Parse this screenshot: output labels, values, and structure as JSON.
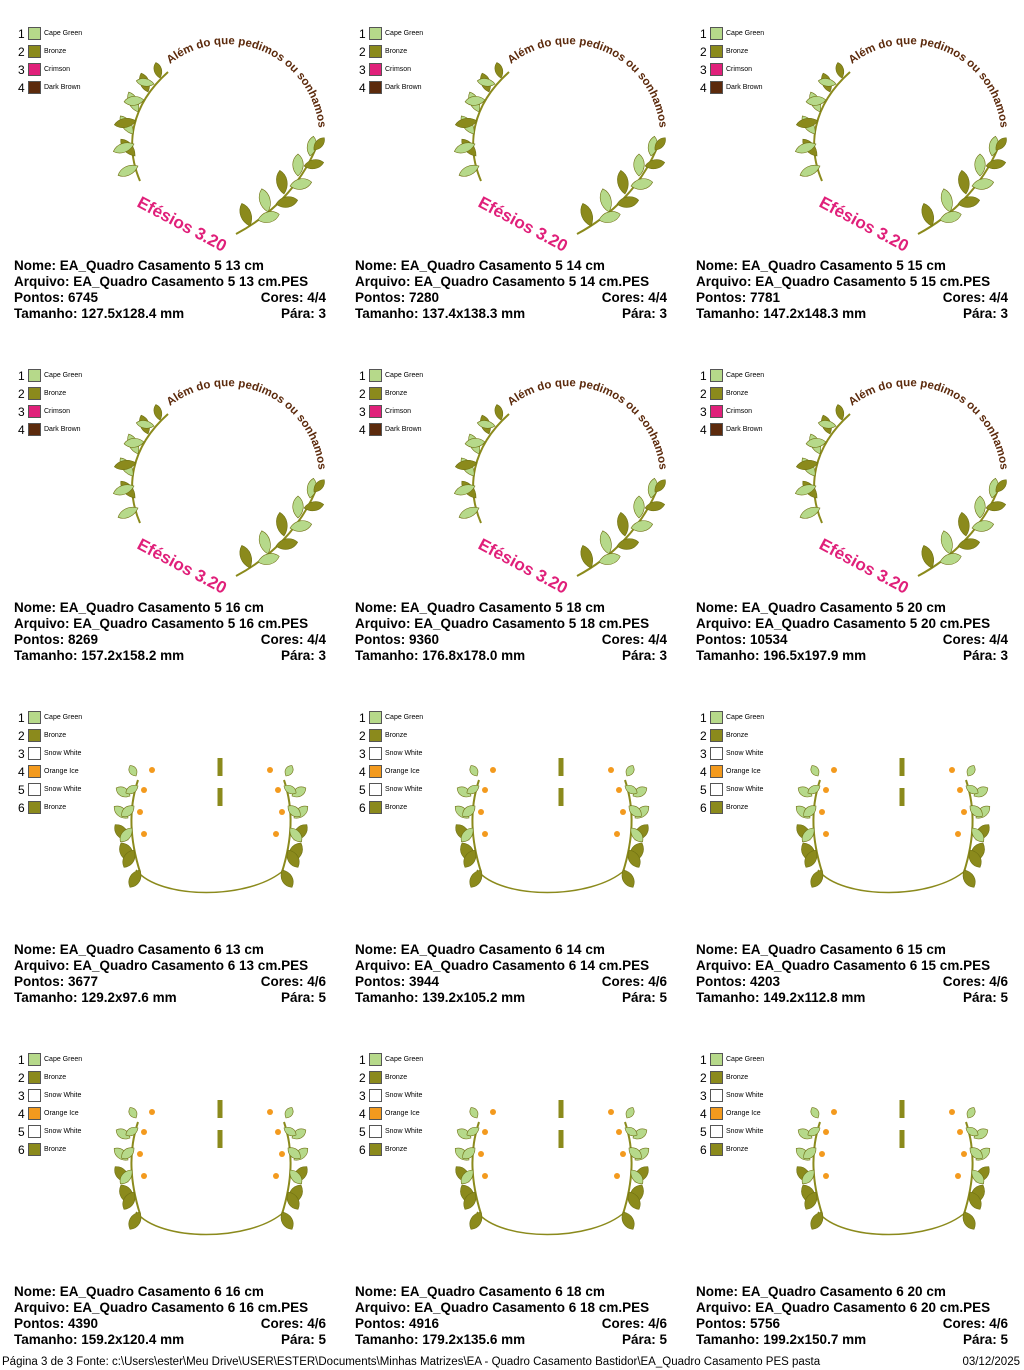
{
  "palettes": {
    "a": [
      {
        "num": "1",
        "name": "Cape Green",
        "color": "#b6d98a"
      },
      {
        "num": "2",
        "name": "Bronze",
        "color": "#8b8a1c"
      },
      {
        "num": "3",
        "name": "Crimson",
        "color": "#e0207a"
      },
      {
        "num": "4",
        "name": "Dark Brown",
        "color": "#5c2a0c"
      }
    ],
    "b": [
      {
        "num": "1",
        "name": "Cape Green",
        "color": "#b6d98a"
      },
      {
        "num": "2",
        "name": "Bronze",
        "color": "#8b8a1c"
      },
      {
        "num": "3",
        "name": "Snow White",
        "color": "#ffffff"
      },
      {
        "num": "4",
        "name": "Orange Ice",
        "color": "#f39a1e"
      },
      {
        "num": "5",
        "name": "Snow White",
        "color": "#ffffff"
      },
      {
        "num": "6",
        "name": "Bronze",
        "color": "#8b8a1c"
      }
    ]
  },
  "artwork": {
    "verse": "Além do que pedimos ou sonhamos",
    "reference": "Efésios 3.20"
  },
  "labels": {
    "name": "Nome:",
    "file": "Arquivo:",
    "stitches": "Pontos:",
    "colors": "Cores:",
    "size": "Tamanho:",
    "stops": "Pára:"
  },
  "designs": [
    {
      "palette": "a",
      "name": "EA_Quadro Casamento 5 13 cm",
      "file": "EA_Quadro Casamento 5 13 cm.PES",
      "stitches": "6745",
      "colors": "4/4",
      "size": "127.5x128.4 mm",
      "stops": "3"
    },
    {
      "palette": "a",
      "name": "EA_Quadro Casamento 5 14 cm",
      "file": "EA_Quadro Casamento 5 14 cm.PES",
      "stitches": "7280",
      "colors": "4/4",
      "size": "137.4x138.3 mm",
      "stops": "3"
    },
    {
      "palette": "a",
      "name": "EA_Quadro Casamento 5 15 cm",
      "file": "EA_Quadro Casamento 5 15 cm.PES",
      "stitches": "7781",
      "colors": "4/4",
      "size": "147.2x148.3 mm",
      "stops": "3"
    },
    {
      "palette": "a",
      "name": "EA_Quadro Casamento 5 16 cm",
      "file": "EA_Quadro Casamento 5 16 cm.PES",
      "stitches": "8269",
      "colors": "4/4",
      "size": "157.2x158.2 mm",
      "stops": "3"
    },
    {
      "palette": "a",
      "name": "EA_Quadro Casamento 5 18 cm",
      "file": "EA_Quadro Casamento 5 18 cm.PES",
      "stitches": "9360",
      "colors": "4/4",
      "size": "176.8x178.0 mm",
      "stops": "3"
    },
    {
      "palette": "a",
      "name": "EA_Quadro Casamento 5 20 cm",
      "file": "EA_Quadro Casamento 5 20 cm.PES",
      "stitches": "10534",
      "colors": "4/4",
      "size": "196.5x197.9 mm",
      "stops": "3"
    },
    {
      "palette": "b",
      "name": "EA_Quadro Casamento 6 13 cm",
      "file": "EA_Quadro Casamento 6 13 cm.PES",
      "stitches": "3677",
      "colors": "4/6",
      "size": "129.2x97.6 mm",
      "stops": "5"
    },
    {
      "palette": "b",
      "name": "EA_Quadro Casamento 6 14 cm",
      "file": "EA_Quadro Casamento 6 14 cm.PES",
      "stitches": "3944",
      "colors": "4/6",
      "size": "139.2x105.2 mm",
      "stops": "5"
    },
    {
      "palette": "b",
      "name": "EA_Quadro Casamento 6 15 cm",
      "file": "EA_Quadro Casamento 6 15 cm.PES",
      "stitches": "4203",
      "colors": "4/6",
      "size": "149.2x112.8 mm",
      "stops": "5"
    },
    {
      "palette": "b",
      "name": "EA_Quadro Casamento 6 16 cm",
      "file": "EA_Quadro Casamento 6 16 cm.PES",
      "stitches": "4390",
      "colors": "4/6",
      "size": "159.2x120.4 mm",
      "stops": "5"
    },
    {
      "palette": "b",
      "name": "EA_Quadro Casamento 6 18 cm",
      "file": "EA_Quadro Casamento 6 18 cm.PES",
      "stitches": "4916",
      "colors": "4/6",
      "size": "179.2x135.6 mm",
      "stops": "5"
    },
    {
      "palette": "b",
      "name": "EA_Quadro Casamento 6 20 cm",
      "file": "EA_Quadro Casamento 6 20 cm.PES",
      "stitches": "5756",
      "colors": "4/6",
      "size": "199.2x150.7 mm",
      "stops": "5"
    }
  ],
  "footer": {
    "left": "Página 3 de 3  Fonte: c:\\Users\\ester\\Meu Drive\\USER\\ESTER\\Documents\\Minhas Matrizes\\EA - Quadro Casamento Bastidor\\EA_Quadro Casamento PES pasta",
    "date": "03/12/2025"
  }
}
